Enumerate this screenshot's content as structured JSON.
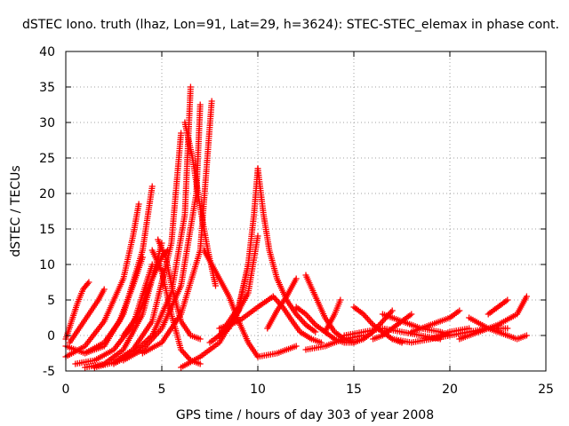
{
  "chart_data": {
    "type": "scatter",
    "title": "dSTEC Iono. truth (lhaz, Lon=91, Lat=29, h=3624): STEC-STEC_elemax in phase cont.",
    "xlabel": "GPS time / hours of day 303 of year 2008",
    "ylabel": "dSTEC  / TECUs",
    "xlim": [
      0,
      25
    ],
    "ylim": [
      -5,
      40
    ],
    "x_ticks": [
      0,
      5,
      10,
      15,
      20,
      25
    ],
    "y_ticks": [
      -5,
      0,
      5,
      10,
      15,
      20,
      25,
      30,
      35,
      40
    ],
    "x_tick_labels": [
      "0",
      "5",
      "10",
      "15",
      "20",
      "25"
    ],
    "y_tick_labels": [
      "-5",
      "0",
      "5",
      "10",
      "15",
      "20",
      "25",
      "30",
      "35",
      "40"
    ],
    "grid": true,
    "legend": "none",
    "marker": "plus",
    "series_color": "#ff0000",
    "series": [
      {
        "x": [
          0.0,
          0.3,
          0.6,
          0.9,
          1.2
        ],
        "y": [
          -0.5,
          2.0,
          4.5,
          6.5,
          7.5
        ]
      },
      {
        "x": [
          0.2,
          0.7,
          1.2,
          1.7,
          2.0
        ],
        "y": [
          -1.0,
          1.0,
          3.0,
          5.0,
          6.5
        ]
      },
      {
        "x": [
          0.0,
          1.0,
          2.0,
          3.0,
          3.5,
          3.8
        ],
        "y": [
          -3.0,
          -1.5,
          2.0,
          8.0,
          14.0,
          18.5
        ]
      },
      {
        "x": [
          1.0,
          2.0,
          3.0,
          4.0,
          4.5
        ],
        "y": [
          -2.5,
          -1.5,
          3.0,
          12.0,
          21.0
        ]
      },
      {
        "x": [
          0.0,
          1.0,
          2.0,
          2.8,
          3.5,
          4.0
        ],
        "y": [
          -1.5,
          -2.5,
          -1.0,
          2.0,
          7.0,
          11.0
        ]
      },
      {
        "x": [
          0.5,
          1.5,
          2.5,
          3.5,
          4.5
        ],
        "y": [
          -4.0,
          -3.5,
          -2.0,
          1.5,
          10.0
        ]
      },
      {
        "x": [
          1.0,
          2.0,
          3.0,
          4.0,
          4.5,
          5.0
        ],
        "y": [
          -4.5,
          -4.0,
          -2.0,
          3.0,
          8.0,
          13.0
        ]
      },
      {
        "x": [
          1.5,
          2.5,
          3.5,
          4.5,
          5.5,
          6.0
        ],
        "y": [
          -4.5,
          -3.8,
          -2.0,
          2.0,
          13.0,
          28.5
        ]
      },
      {
        "x": [
          2.5,
          3.5,
          4.5,
          5.5,
          6.2,
          6.5
        ],
        "y": [
          -4.0,
          -2.5,
          0.0,
          6.0,
          17.0,
          35.0
        ]
      },
      {
        "x": [
          3.0,
          4.0,
          5.0,
          6.0,
          6.8,
          7.0
        ],
        "y": [
          -3.5,
          -2.0,
          1.0,
          7.0,
          20.0,
          32.5
        ]
      },
      {
        "x": [
          4.0,
          5.0,
          6.0,
          7.0,
          7.6
        ],
        "y": [
          -2.5,
          -1.0,
          3.0,
          12.0,
          33.0
        ]
      },
      {
        "x": [
          3.0,
          3.8,
          4.5,
          5.0,
          5.3
        ],
        "y": [
          0.0,
          3.0,
          8.0,
          11.0,
          12.0
        ]
      },
      {
        "x": [
          4.8,
          5.2,
          5.6,
          6.0,
          6.5,
          7.0
        ],
        "y": [
          13.5,
          11.0,
          6.0,
          2.0,
          0.0,
          -0.5
        ]
      },
      {
        "x": [
          4.5,
          5.0,
          5.5,
          6.0,
          6.5,
          7.0
        ],
        "y": [
          12.0,
          9.0,
          3.0,
          -2.0,
          -3.5,
          -4.0
        ]
      },
      {
        "x": [
          6.2,
          6.6,
          7.0,
          7.4,
          7.8
        ],
        "y": [
          30.0,
          25.0,
          18.0,
          12.0,
          7.0
        ]
      },
      {
        "x": [
          7.2,
          7.6,
          8.0,
          8.5,
          9.0,
          9.5,
          10.0
        ],
        "y": [
          12.0,
          10.0,
          8.0,
          5.5,
          2.0,
          -1.0,
          -3.0
        ]
      },
      {
        "x": [
          10.0,
          11.0,
          12.0
        ],
        "y": [
          -3.0,
          -2.5,
          -1.5
        ]
      },
      {
        "x": [
          7.5,
          8.5,
          9.5,
          10.0
        ],
        "y": [
          -1.0,
          1.0,
          6.0,
          14.0
        ]
      },
      {
        "x": [
          6.0,
          7.0,
          8.0,
          9.0,
          9.5
        ],
        "y": [
          -4.5,
          -3.0,
          -1.0,
          3.5,
          10.0
        ]
      },
      {
        "x": [
          8.0,
          9.0,
          9.5,
          9.8,
          10.0
        ],
        "y": [
          0.0,
          4.0,
          10.0,
          17.0,
          23.5
        ]
      },
      {
        "x": [
          10.0,
          10.3,
          10.6,
          11.0,
          11.5,
          12.0,
          12.5,
          13.0
        ],
        "y": [
          23.5,
          17.0,
          12.0,
          8.0,
          5.0,
          3.0,
          1.5,
          0.5
        ]
      },
      {
        "x": [
          8.0,
          9.0,
          10.0,
          10.8
        ],
        "y": [
          1.0,
          2.0,
          4.0,
          5.5
        ]
      },
      {
        "x": [
          10.8,
          11.3,
          11.8,
          12.2,
          12.8,
          13.3
        ],
        "y": [
          5.5,
          4.0,
          2.0,
          0.5,
          -0.5,
          -1.0
        ]
      },
      {
        "x": [
          10.5,
          11.0,
          11.5,
          11.8,
          12.0
        ],
        "y": [
          1.0,
          3.5,
          5.5,
          7.0,
          8.0
        ]
      },
      {
        "x": [
          12.0,
          12.5,
          13.0,
          13.5,
          14.0,
          14.5,
          15.0
        ],
        "y": [
          4.0,
          3.0,
          1.5,
          0.5,
          -0.5,
          -1.0,
          -1.0
        ]
      },
      {
        "x": [
          12.5,
          13.0,
          13.5,
          14.0,
          14.5,
          15.0
        ],
        "y": [
          8.5,
          5.5,
          2.5,
          0.5,
          -0.5,
          -1.0
        ]
      },
      {
        "x": [
          12.5,
          13.5,
          14.5,
          15.5
        ],
        "y": [
          -2.0,
          -1.5,
          -0.5,
          0.0
        ]
      },
      {
        "x": [
          13.5,
          14.0,
          14.3
        ],
        "y": [
          0.5,
          3.0,
          5.0
        ]
      },
      {
        "x": [
          15.0,
          15.5,
          16.0,
          16.5,
          17.0,
          17.5
        ],
        "y": [
          4.0,
          3.0,
          1.5,
          0.5,
          -0.5,
          -1.0
        ]
      },
      {
        "x": [
          15.0,
          15.5,
          16.0,
          16.5,
          17.0
        ],
        "y": [
          -1.0,
          -0.5,
          0.5,
          2.0,
          3.5
        ]
      },
      {
        "x": [
          16.0,
          16.5,
          17.0,
          17.5,
          18.0
        ],
        "y": [
          -0.5,
          0.0,
          1.0,
          2.0,
          3.0
        ]
      },
      {
        "x": [
          16.5,
          17.5,
          18.5,
          19.5,
          20.0
        ],
        "y": [
          3.0,
          2.0,
          1.0,
          0.5,
          0.0
        ]
      },
      {
        "x": [
          17.0,
          18.0,
          19.0,
          20.0,
          21.0
        ],
        "y": [
          -0.5,
          -1.0,
          -0.5,
          0.5,
          1.0
        ]
      },
      {
        "x": [
          18.0,
          19.0,
          20.0,
          20.5
        ],
        "y": [
          0.5,
          1.5,
          2.5,
          3.5
        ]
      },
      {
        "x": [
          19.0,
          20.0,
          21.0,
          22.0,
          23.0
        ],
        "y": [
          -0.5,
          0.0,
          0.5,
          1.0,
          1.0
        ]
      },
      {
        "x": [
          20.5,
          21.5,
          22.5,
          23.5,
          24.0
        ],
        "y": [
          -0.5,
          0.5,
          1.5,
          3.0,
          5.5
        ]
      },
      {
        "x": [
          21.0,
          22.0,
          23.0,
          23.5,
          24.0
        ],
        "y": [
          2.5,
          1.0,
          0.0,
          -0.5,
          0.0
        ]
      },
      {
        "x": [
          22.0,
          22.5,
          23.0
        ],
        "y": [
          3.0,
          4.0,
          5.0
        ]
      },
      {
        "x": [
          14.5,
          15.5,
          16.5,
          17.5,
          18.5,
          19.5
        ],
        "y": [
          0.0,
          0.5,
          1.0,
          0.5,
          0.0,
          -0.5
        ]
      }
    ]
  }
}
